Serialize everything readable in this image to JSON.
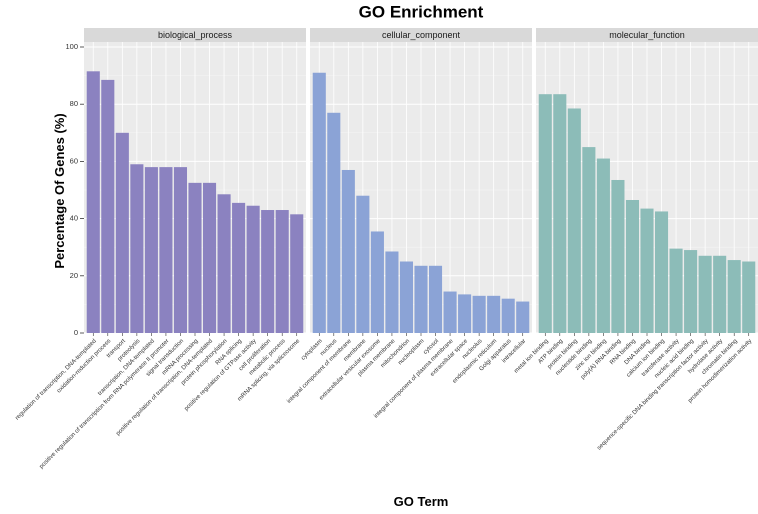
{
  "chart_data": {
    "type": "bar",
    "title": "GO Enrichment",
    "xlabel": "GO Term",
    "ylabel": "Percentage Of Genes (%)",
    "ylim": [
      0,
      100
    ],
    "yticks": [
      0,
      20,
      40,
      60,
      80,
      100
    ],
    "grid": true,
    "facets": [
      {
        "name": "biological_process",
        "color": "#8b82c0",
        "categories": [
          "regulation of transcription, DNA-templated",
          "oxidation-reduction process",
          "transport",
          "proteolysis",
          "transcription, DNA-templated",
          "positive regulation of transcription from RNA polymerase II promoter",
          "signal transduction",
          "mRNA processing",
          "positive regulation of transcription, DNA-templated",
          "protein phosphorylation",
          "RNA splicing",
          "positive regulation of GTPase activity",
          "cell proliferation",
          "metabolic process",
          "mRNA splicing, via spliceosome"
        ],
        "values": [
          91.5,
          88.5,
          70,
          59,
          58,
          58,
          58,
          52.5,
          52.5,
          48.5,
          45.5,
          44.5,
          43,
          43,
          41.5
        ]
      },
      {
        "name": "cellular_component",
        "color": "#8ba3d6",
        "categories": [
          "cytoplasm",
          "nucleus",
          "integral component of membrane",
          "membrane",
          "extracellular vesicular exosome",
          "plasma membrane",
          "mitochondrion",
          "nucleoplasm",
          "cytosol",
          "integral component of plasma membrane",
          "extracellular space",
          "nucleolus",
          "endoplasmic reticulum",
          "Golgi apparatus",
          "intracellular"
        ],
        "values": [
          91,
          77,
          57,
          48,
          35.5,
          28.5,
          25,
          23.5,
          23.5,
          14.5,
          13.5,
          13,
          13,
          12,
          11
        ]
      },
      {
        "name": "molecular_function",
        "color": "#8cbcb8",
        "categories": [
          "metal ion binding",
          "ATP binding",
          "protein binding",
          "nucleotide binding",
          "zinc ion binding",
          "poly(A) RNA binding",
          "RNA binding",
          "DNA binding",
          "calcium ion binding",
          "transferase activity",
          "nucleic acid binding",
          "sequence-specific DNA binding transcription factor activity",
          "hydrolase activity",
          "chromatin binding",
          "protein homodimerization activity"
        ],
        "values": [
          83.5,
          83.5,
          78.5,
          65,
          61,
          53.5,
          46.5,
          43.5,
          42.5,
          29.5,
          29,
          27,
          27,
          25.5,
          25
        ]
      }
    ]
  }
}
